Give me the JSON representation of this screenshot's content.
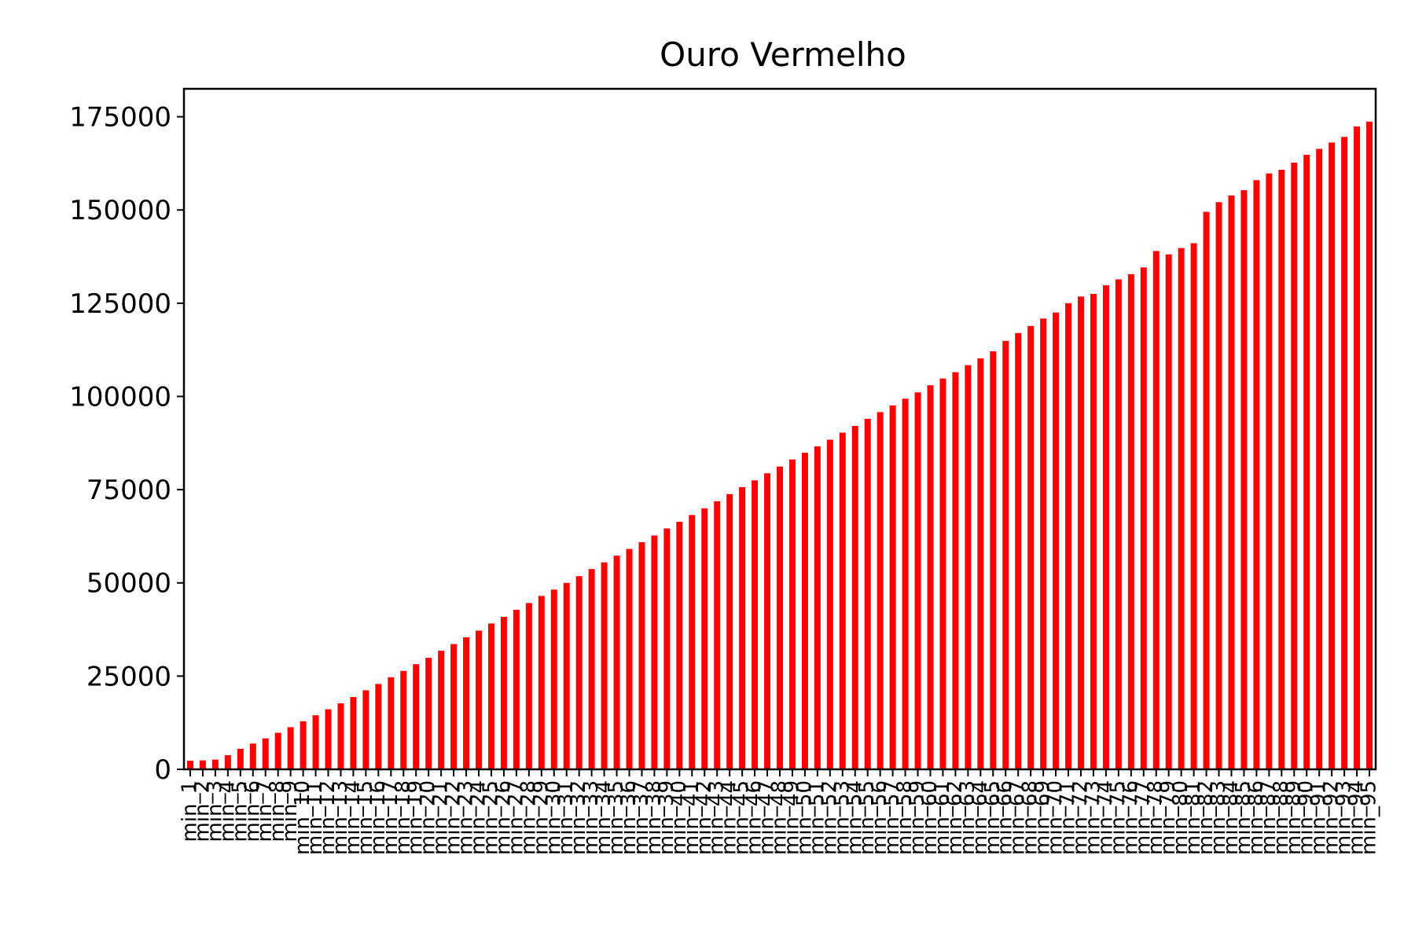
{
  "chart_data": {
    "type": "bar",
    "title": "Ouro Vermelho",
    "xlabel": "",
    "ylabel": "",
    "ylim": [
      0,
      182500
    ],
    "yticks": [
      0,
      25000,
      50000,
      75000,
      100000,
      125000,
      150000,
      175000
    ],
    "ytick_labels": [
      "0",
      "25000",
      "50000",
      "75000",
      "100000",
      "125000",
      "150000",
      "175000"
    ],
    "grid": false,
    "legend": "none",
    "bar_color": "#ff0000",
    "categories": [
      "min_1",
      "min_2",
      "min_3",
      "min_4",
      "min_5",
      "min_6",
      "min_7",
      "min_8",
      "min_9",
      "min_10",
      "min_11",
      "min_12",
      "min_13",
      "min_14",
      "min_15",
      "min_16",
      "min_17",
      "min_18",
      "min_19",
      "min_20",
      "min_21",
      "min_22",
      "min_23",
      "min_24",
      "min_25",
      "min_26",
      "min_27",
      "min_28",
      "min_29",
      "min_30",
      "min_31",
      "min_32",
      "min_33",
      "min_34",
      "min_35",
      "min_36",
      "min_37",
      "min_38",
      "min_39",
      "min_40",
      "min_41",
      "min_42",
      "min_43",
      "min_44",
      "min_45",
      "min_46",
      "min_47",
      "min_48",
      "min_49",
      "min_50",
      "min_51",
      "min_52",
      "min_53",
      "min_54",
      "min_55",
      "min_56",
      "min_57",
      "min_58",
      "min_59",
      "min_60",
      "min_61",
      "min_62",
      "min_63",
      "min_64",
      "min_65",
      "min_66",
      "min_67",
      "min_68",
      "min_69",
      "min_70",
      "min_71",
      "min_72",
      "min_73",
      "min_74",
      "min_75",
      "min_76",
      "min_77",
      "min_78",
      "min_79",
      "min_80",
      "min_81",
      "min_82",
      "min_83",
      "min_84",
      "min_85",
      "min_86",
      "min_87",
      "min_88",
      "min_89",
      "min_90",
      "min_91",
      "min_92",
      "min_93",
      "min_94",
      "min_95"
    ],
    "values": [
      2300,
      2400,
      2600,
      3800,
      5500,
      6900,
      8300,
      9800,
      11300,
      12900,
      14500,
      16100,
      17700,
      19400,
      21200,
      22900,
      24700,
      26400,
      28200,
      29900,
      31800,
      33600,
      35400,
      37200,
      39100,
      40900,
      42800,
      44600,
      46500,
      48200,
      50000,
      51800,
      53700,
      55500,
      57300,
      59100,
      60900,
      62700,
      64600,
      66400,
      68200,
      70000,
      71900,
      73800,
      75700,
      77500,
      79400,
      81200,
      83100,
      84900,
      86600,
      88400,
      90300,
      92100,
      94000,
      95800,
      97600,
      99400,
      101100,
      103000,
      104800,
      106500,
      108400,
      110200,
      112100,
      114900,
      117000,
      118900,
      120900,
      122500,
      125000,
      126800,
      127500,
      129800,
      131400,
      132800,
      134600,
      139000,
      138100,
      139800,
      141100,
      149500,
      152100,
      153900,
      155300,
      158000,
      159800,
      160800,
      162700,
      164800,
      166400,
      168100,
      169600,
      172400,
      173700
    ]
  }
}
